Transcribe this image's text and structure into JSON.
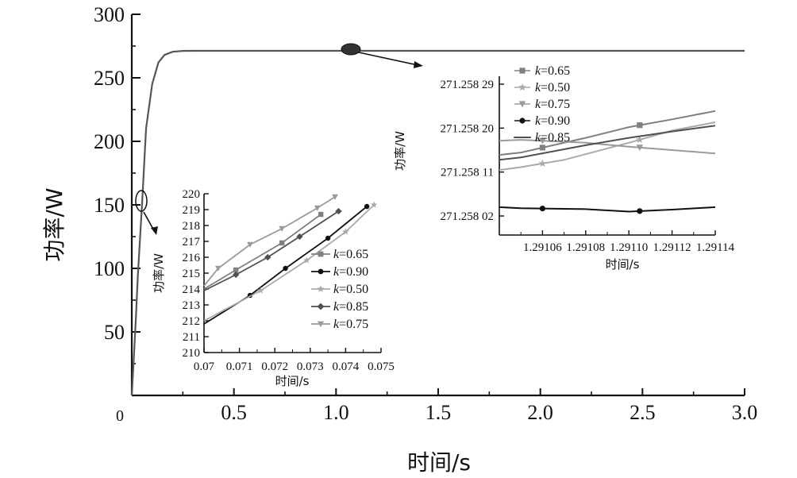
{
  "chart_data": [
    {
      "type": "line",
      "xlabel": "时间/s",
      "ylabel": "功率/W",
      "xlim": [
        0,
        3.0
      ],
      "ylim": [
        0,
        300
      ],
      "xticks": [
        0,
        0.5,
        1.0,
        1.5,
        2.0,
        2.5,
        3.0
      ],
      "xtick_labels": [
        "0",
        "0.5",
        "1.0",
        "1.5",
        "2.0",
        "2.5",
        "3.0"
      ],
      "yticks": [
        50,
        100,
        150,
        200,
        250,
        300
      ],
      "ytick_labels": [
        "50",
        "100",
        "150",
        "200",
        "250",
        "300"
      ],
      "series": [
        {
          "x": [
            0,
            0.01,
            0.02,
            0.03,
            0.05,
            0.07,
            0.1,
            0.13,
            0.16,
            0.2,
            0.25,
            0.3,
            0.5,
            1.0,
            1.5,
            2.0,
            2.5,
            3.0
          ],
          "values": [
            0,
            30,
            60,
            95,
            150,
            210,
            245,
            262,
            268,
            270.5,
            271.2,
            271.258,
            271.258,
            271.258,
            271.258,
            271.258,
            271.258,
            271.258
          ]
        }
      ],
      "grid": false
    },
    {
      "type": "line",
      "xlabel": "时间/s",
      "ylabel": "功率/W",
      "xlim": [
        0.07,
        0.075
      ],
      "ylim": [
        210,
        220
      ],
      "xticks": [
        0.07,
        0.071,
        0.072,
        0.073,
        0.074,
        0.075
      ],
      "xtick_labels": [
        "0.07",
        "0.071",
        "0.072",
        "0.073",
        "0.074",
        "0.075"
      ],
      "yticks": [
        210,
        211,
        212,
        213,
        214,
        215,
        216,
        217,
        218,
        219,
        220
      ],
      "ytick_labels": [
        "210",
        "211",
        "212",
        "213",
        "214",
        "215",
        "216",
        "217",
        "218",
        "219",
        "220"
      ],
      "legend_position": "right",
      "series": [
        {
          "name": "k=0.65",
          "x": [
            0.07,
            0.0709,
            0.0722,
            0.0733
          ],
          "values": [
            214.0,
            215.2,
            216.9,
            218.7
          ]
        },
        {
          "name": "k=0.90",
          "x": [
            0.07,
            0.0713,
            0.0723,
            0.0735,
            0.0746
          ],
          "values": [
            211.8,
            213.6,
            215.3,
            217.2,
            219.2
          ]
        },
        {
          "name": "k=0.50",
          "x": [
            0.07,
            0.0716,
            0.0729,
            0.074,
            0.0748
          ],
          "values": [
            212.0,
            213.9,
            215.8,
            217.6,
            219.3
          ]
        },
        {
          "name": "k=0.85",
          "x": [
            0.07,
            0.0709,
            0.0718,
            0.0727,
            0.0738
          ],
          "values": [
            213.9,
            214.9,
            216.0,
            217.3,
            218.9
          ]
        },
        {
          "name": "k=0.75",
          "x": [
            0.07,
            0.0704,
            0.0713,
            0.0722,
            0.0732,
            0.0737
          ],
          "values": [
            214.2,
            215.3,
            216.8,
            217.8,
            219.1,
            219.8
          ]
        }
      ]
    },
    {
      "type": "line",
      "xlabel": "时间/s",
      "ylabel": "功率/W",
      "xtick_labels": [
        "1.29106",
        "1.29108",
        "1.29110",
        "1.29112",
        "1.29114"
      ],
      "ytick_labels": [
        "271.258 02",
        "271.258 11",
        "271.258 20",
        "271.258 29"
      ],
      "legend_position": "top-left",
      "series": [
        {
          "name": "k=0.65",
          "x": [
            1.29104,
            1.29105,
            1.291065,
            1.29108,
            1.2911,
            1.29112,
            1.29114
          ],
          "values": [
            271.258145,
            271.25815,
            271.258165,
            271.25818,
            271.258202,
            271.258218,
            271.258235
          ]
        },
        {
          "name": "k=0.50",
          "x": [
            1.29104,
            1.29105,
            1.29107,
            1.2911,
            1.29112,
            1.29114
          ],
          "values": [
            271.258114,
            271.25812,
            271.258135,
            271.25817,
            271.258195,
            271.258212
          ]
        },
        {
          "name": "k=0.75",
          "x": [
            1.29104,
            1.29105,
            1.29108,
            1.2911,
            1.29112,
            1.29114
          ],
          "values": [
            271.258174,
            271.258176,
            271.25817,
            271.258162,
            271.258155,
            271.258148
          ]
        },
        {
          "name": "k=0.90",
          "x": [
            1.29104,
            1.29105,
            1.29108,
            1.2911,
            1.29112,
            1.29114
          ],
          "values": [
            271.258038,
            271.258036,
            271.258034,
            271.258029,
            271.258033,
            271.258038
          ]
        },
        {
          "name": "k=0.85",
          "x": [
            1.29104,
            1.29105,
            1.29108,
            1.2911,
            1.29112,
            1.29114
          ],
          "values": [
            271.258135,
            271.25814,
            271.258165,
            271.25818,
            271.258193,
            271.258205
          ]
        }
      ]
    }
  ],
  "legend": {
    "k_symbol": "k",
    "inset_small": [
      "=0.65",
      "=0.90",
      "=0.50",
      "=0.85",
      "=0.75"
    ],
    "inset_right": [
      "=0.65",
      "=0.50",
      "=0.75",
      "=0.90",
      "=0.85"
    ]
  },
  "colors": {
    "k=0.65": "#808080",
    "k=0.90": "#111111",
    "k=0.50": "#a9a9a9",
    "k=0.85": "#505050",
    "k=0.75": "#9a9a9a",
    "main_curve": "#555555"
  },
  "markers": {
    "k=0.65": "square",
    "k=0.90": "circle",
    "k=0.50": "star",
    "k=0.85": "diamond",
    "k=0.75": "triangle-down",
    "right_k=0.85": "line"
  }
}
